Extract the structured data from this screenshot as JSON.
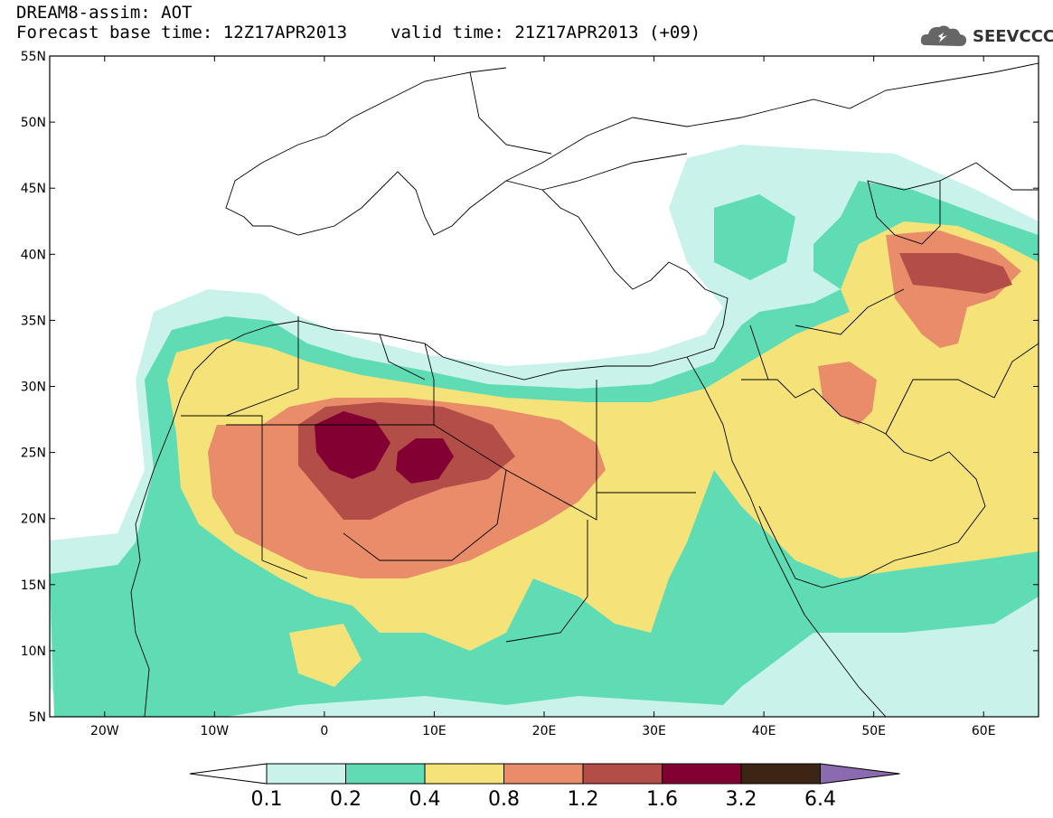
{
  "header": {
    "title": "DREAM8-assim: AOT",
    "base_time": "Forecast base time: 12Z17APR2013",
    "valid_time": "valid time: 21Z17APR2013 (+09)"
  },
  "logo": {
    "text": "SEEVCCC",
    "icon": "cloud-icon"
  },
  "map": {
    "lon_range": [
      -25,
      65
    ],
    "lat_range": [
      5,
      55
    ],
    "lat_ticks": [
      "5N",
      "10N",
      "15N",
      "20N",
      "25N",
      "30N",
      "35N",
      "40N",
      "45N",
      "50N",
      "55N"
    ],
    "lon_ticks": [
      "20W",
      "10W",
      "0",
      "10E",
      "20E",
      "30E",
      "40E",
      "50E",
      "60E"
    ]
  },
  "colorbar": {
    "levels": [
      "0.1",
      "0.2",
      "0.4",
      "0.8",
      "1.2",
      "1.6",
      "3.2",
      "6.4"
    ],
    "colors": [
      "#c8f2ea",
      "#5fdcb4",
      "#f5e37a",
      "#e98c6a",
      "#b34d47",
      "#830032",
      "#3d2516",
      "#8a6bb0"
    ]
  }
}
